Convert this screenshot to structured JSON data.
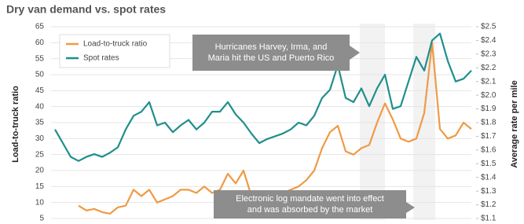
{
  "chart_data": {
    "type": "line",
    "title": "Dry van demand vs. spot rates",
    "ylabel": "Load-to-truck ratio",
    "y2label": "Average rate per mile",
    "ylim": [
      5,
      65
    ],
    "yticks": [
      5,
      10,
      15,
      20,
      25,
      30,
      35,
      40,
      45,
      50,
      55,
      60,
      65
    ],
    "y2lim": [
      1.1,
      2.5
    ],
    "y2ticks": [
      {
        "value": 1.1,
        "label": "$1.1"
      },
      {
        "value": 1.2,
        "label": "$1.2"
      },
      {
        "value": 1.3,
        "label": "$1.3"
      },
      {
        "value": 1.4,
        "label": "$1.4"
      },
      {
        "value": 1.5,
        "label": "$1.5"
      },
      {
        "value": 1.6,
        "label": "$1.6"
      },
      {
        "value": 1.7,
        "label": "$1.7"
      },
      {
        "value": 1.8,
        "label": "$1.8"
      },
      {
        "value": 1.9,
        "label": "$1.9"
      },
      {
        "value": 2.0,
        "label": "$2.0"
      },
      {
        "value": 2.1,
        "label": "$2.1"
      },
      {
        "value": 2.2,
        "label": "$2.2"
      },
      {
        "value": 2.3,
        "label": "$2.3"
      },
      {
        "value": 2.4,
        "label": "$2.4"
      },
      {
        "value": 2.5,
        "label": "$2.5"
      }
    ],
    "grid": true,
    "legend": "upper left",
    "series": [
      {
        "name": "Load-to-truck ratio",
        "color": "#ef9a45",
        "values": [
          null,
          null,
          null,
          9,
          7.5,
          8,
          7,
          6.5,
          8.5,
          9,
          14,
          12,
          14,
          10,
          11,
          12,
          14,
          14,
          13,
          15,
          13,
          14,
          19,
          16,
          20,
          12,
          11,
          12,
          12,
          13,
          14,
          15,
          17,
          20,
          27,
          32,
          34,
          26,
          25,
          27,
          28,
          35,
          41,
          36,
          30,
          29,
          30,
          38,
          60,
          33,
          30,
          31,
          35,
          33
        ]
      },
      {
        "name": "Spot rates",
        "color": "#1f8f8c",
        "axis": "y2",
        "values": [
          1.75,
          1.65,
          1.55,
          1.52,
          1.55,
          1.57,
          1.55,
          1.58,
          1.62,
          1.75,
          1.85,
          1.88,
          1.95,
          1.78,
          1.8,
          1.73,
          1.78,
          1.82,
          1.75,
          1.8,
          1.88,
          1.88,
          1.95,
          1.86,
          1.8,
          1.72,
          1.65,
          1.68,
          1.7,
          1.72,
          1.75,
          1.8,
          1.78,
          1.85,
          1.98,
          2.04,
          2.22,
          1.98,
          1.95,
          2.05,
          1.92,
          2.05,
          2.15,
          1.9,
          1.92,
          2.1,
          2.28,
          2.18,
          2.4,
          2.45,
          2.25,
          2.1,
          2.12,
          2.18
        ]
      }
    ],
    "annotations": [
      {
        "lines": [
          "Hurricanes Harvey, Irma, and",
          "Maria hit the US and Puerto Rico"
        ]
      },
      {
        "lines": [
          "Electronic log mandate went into effect",
          "and was absorbed by the market"
        ]
      }
    ]
  }
}
